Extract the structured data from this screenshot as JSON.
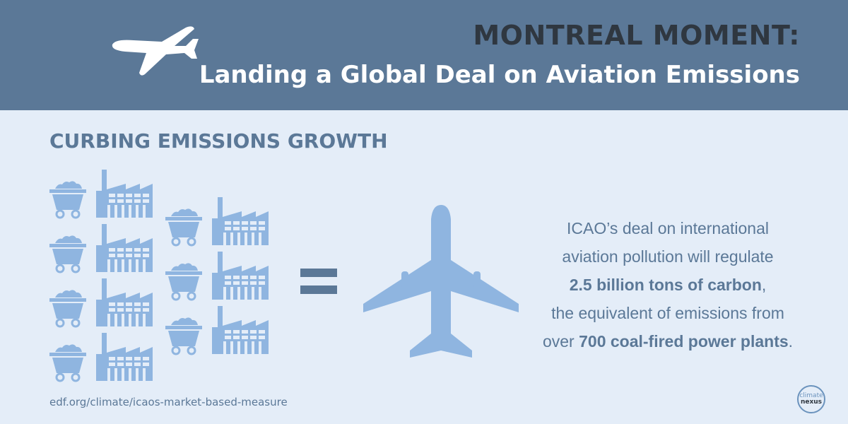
{
  "header": {
    "title_line1": "MONTREAL MOMENT:",
    "title_line2": "Landing a Global Deal on Aviation Emissions"
  },
  "section_title": "CURBING EMISSIONS GROWTH",
  "description": {
    "line1": "ICAO’s deal on international",
    "line2": "aviation pollution will regulate",
    "line3_bold": "2.5 billion tons of carbon",
    "line3_tail": ",",
    "line4": "the equivalent of emissions from",
    "line5_pre": "over ",
    "line5_bold": "700 coal-fired power plants",
    "line5_tail": "."
  },
  "source_url": "edf.org/climate/icaos-market-based-measure",
  "logo": {
    "line1": "climate",
    "line2": "nexus"
  },
  "colors": {
    "header_bg": "#5b7897",
    "page_bg": "#e4edf8",
    "icon_blue": "#8fb5e0",
    "title_dark": "#2f3740"
  }
}
